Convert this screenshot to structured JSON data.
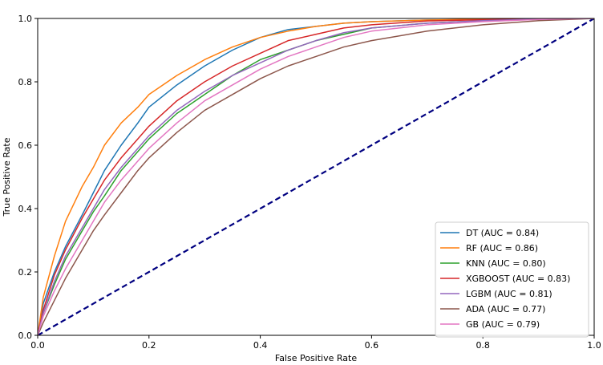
{
  "chart_data": {
    "type": "line",
    "title": "",
    "xlabel": "False Positive Rate",
    "ylabel": "True Positive Rate",
    "xlim": [
      0.0,
      1.0
    ],
    "ylim": [
      0.0,
      1.0
    ],
    "x_ticks": [
      "0.0",
      "0.2",
      "0.4",
      "0.6",
      "0.8",
      "1.0"
    ],
    "y_ticks": [
      "0.0",
      "0.2",
      "0.4",
      "0.6",
      "0.8",
      "1.0"
    ],
    "grid": false,
    "legend_position": "bottom-right",
    "baseline": {
      "name": "chance",
      "color": "#000080",
      "style": "dashed",
      "points": [
        [
          0.0,
          0.0
        ],
        [
          1.0,
          1.0
        ]
      ]
    },
    "series": [
      {
        "name": "DT (AUC = 0.84)",
        "color": "#1f77b4",
        "points": [
          [
            0,
            0
          ],
          [
            0.01,
            0.1
          ],
          [
            0.03,
            0.2
          ],
          [
            0.05,
            0.28
          ],
          [
            0.08,
            0.38
          ],
          [
            0.1,
            0.45
          ],
          [
            0.12,
            0.52
          ],
          [
            0.15,
            0.6
          ],
          [
            0.18,
            0.67
          ],
          [
            0.2,
            0.72
          ],
          [
            0.25,
            0.79
          ],
          [
            0.3,
            0.85
          ],
          [
            0.35,
            0.9
          ],
          [
            0.4,
            0.94
          ],
          [
            0.45,
            0.965
          ],
          [
            0.5,
            0.975
          ],
          [
            0.55,
            0.985
          ],
          [
            0.6,
            0.99
          ],
          [
            0.7,
            0.995
          ],
          [
            0.8,
            0.997
          ],
          [
            0.9,
            0.999
          ],
          [
            1.0,
            1.0
          ]
        ]
      },
      {
        "name": "RF (AUC = 0.86)",
        "color": "#ff7f0e",
        "points": [
          [
            0,
            0
          ],
          [
            0.01,
            0.12
          ],
          [
            0.03,
            0.25
          ],
          [
            0.05,
            0.36
          ],
          [
            0.08,
            0.47
          ],
          [
            0.1,
            0.53
          ],
          [
            0.12,
            0.6
          ],
          [
            0.15,
            0.67
          ],
          [
            0.18,
            0.72
          ],
          [
            0.2,
            0.76
          ],
          [
            0.25,
            0.82
          ],
          [
            0.3,
            0.87
          ],
          [
            0.35,
            0.91
          ],
          [
            0.4,
            0.94
          ],
          [
            0.45,
            0.96
          ],
          [
            0.5,
            0.975
          ],
          [
            0.55,
            0.985
          ],
          [
            0.6,
            0.99
          ],
          [
            0.7,
            0.995
          ],
          [
            0.8,
            0.998
          ],
          [
            0.9,
            0.999
          ],
          [
            1.0,
            1.0
          ]
        ]
      },
      {
        "name": "KNN (AUC = 0.80)",
        "color": "#2ca02c",
        "points": [
          [
            0,
            0
          ],
          [
            0.01,
            0.07
          ],
          [
            0.03,
            0.16
          ],
          [
            0.05,
            0.24
          ],
          [
            0.08,
            0.33
          ],
          [
            0.1,
            0.39
          ],
          [
            0.12,
            0.44
          ],
          [
            0.15,
            0.52
          ],
          [
            0.18,
            0.58
          ],
          [
            0.2,
            0.62
          ],
          [
            0.25,
            0.7
          ],
          [
            0.3,
            0.76
          ],
          [
            0.35,
            0.82
          ],
          [
            0.4,
            0.87
          ],
          [
            0.45,
            0.9
          ],
          [
            0.5,
            0.93
          ],
          [
            0.55,
            0.95
          ],
          [
            0.6,
            0.97
          ],
          [
            0.7,
            0.985
          ],
          [
            0.8,
            0.993
          ],
          [
            0.9,
            0.998
          ],
          [
            1.0,
            1.0
          ]
        ]
      },
      {
        "name": "XGBOOST (AUC = 0.83)",
        "color": "#d62728",
        "points": [
          [
            0,
            0
          ],
          [
            0.01,
            0.08
          ],
          [
            0.03,
            0.19
          ],
          [
            0.05,
            0.27
          ],
          [
            0.08,
            0.37
          ],
          [
            0.1,
            0.43
          ],
          [
            0.12,
            0.49
          ],
          [
            0.15,
            0.56
          ],
          [
            0.18,
            0.62
          ],
          [
            0.2,
            0.66
          ],
          [
            0.25,
            0.74
          ],
          [
            0.3,
            0.8
          ],
          [
            0.35,
            0.85
          ],
          [
            0.4,
            0.89
          ],
          [
            0.45,
            0.93
          ],
          [
            0.5,
            0.95
          ],
          [
            0.55,
            0.97
          ],
          [
            0.6,
            0.98
          ],
          [
            0.7,
            0.992
          ],
          [
            0.8,
            0.996
          ],
          [
            0.9,
            0.999
          ],
          [
            1.0,
            1.0
          ]
        ]
      },
      {
        "name": "LGBM (AUC = 0.81)",
        "color": "#9467bd",
        "points": [
          [
            0,
            0
          ],
          [
            0.01,
            0.07
          ],
          [
            0.03,
            0.17
          ],
          [
            0.05,
            0.25
          ],
          [
            0.08,
            0.34
          ],
          [
            0.1,
            0.4
          ],
          [
            0.12,
            0.46
          ],
          [
            0.15,
            0.53
          ],
          [
            0.18,
            0.59
          ],
          [
            0.2,
            0.63
          ],
          [
            0.25,
            0.71
          ],
          [
            0.3,
            0.77
          ],
          [
            0.35,
            0.82
          ],
          [
            0.4,
            0.86
          ],
          [
            0.45,
            0.9
          ],
          [
            0.5,
            0.93
          ],
          [
            0.55,
            0.955
          ],
          [
            0.6,
            0.97
          ],
          [
            0.7,
            0.985
          ],
          [
            0.8,
            0.993
          ],
          [
            0.9,
            0.998
          ],
          [
            1.0,
            1.0
          ]
        ]
      },
      {
        "name": "ADA (AUC = 0.77)",
        "color": "#8c564b",
        "points": [
          [
            0,
            0
          ],
          [
            0.01,
            0.04
          ],
          [
            0.03,
            0.11
          ],
          [
            0.05,
            0.18
          ],
          [
            0.08,
            0.27
          ],
          [
            0.1,
            0.33
          ],
          [
            0.12,
            0.38
          ],
          [
            0.15,
            0.45
          ],
          [
            0.18,
            0.52
          ],
          [
            0.2,
            0.56
          ],
          [
            0.25,
            0.64
          ],
          [
            0.3,
            0.71
          ],
          [
            0.35,
            0.76
          ],
          [
            0.4,
            0.81
          ],
          [
            0.45,
            0.85
          ],
          [
            0.5,
            0.88
          ],
          [
            0.55,
            0.91
          ],
          [
            0.6,
            0.93
          ],
          [
            0.7,
            0.96
          ],
          [
            0.8,
            0.98
          ],
          [
            0.9,
            0.993
          ],
          [
            1.0,
            1.0
          ]
        ]
      },
      {
        "name": "GB (AUC = 0.79)",
        "color": "#e377c2",
        "points": [
          [
            0,
            0
          ],
          [
            0.01,
            0.06
          ],
          [
            0.03,
            0.14
          ],
          [
            0.05,
            0.21
          ],
          [
            0.08,
            0.3
          ],
          [
            0.1,
            0.36
          ],
          [
            0.12,
            0.42
          ],
          [
            0.15,
            0.49
          ],
          [
            0.18,
            0.55
          ],
          [
            0.2,
            0.59
          ],
          [
            0.25,
            0.67
          ],
          [
            0.3,
            0.74
          ],
          [
            0.35,
            0.79
          ],
          [
            0.4,
            0.84
          ],
          [
            0.45,
            0.88
          ],
          [
            0.5,
            0.91
          ],
          [
            0.55,
            0.94
          ],
          [
            0.6,
            0.96
          ],
          [
            0.7,
            0.98
          ],
          [
            0.8,
            0.99
          ],
          [
            0.9,
            0.997
          ],
          [
            1.0,
            1.0
          ]
        ]
      }
    ]
  }
}
